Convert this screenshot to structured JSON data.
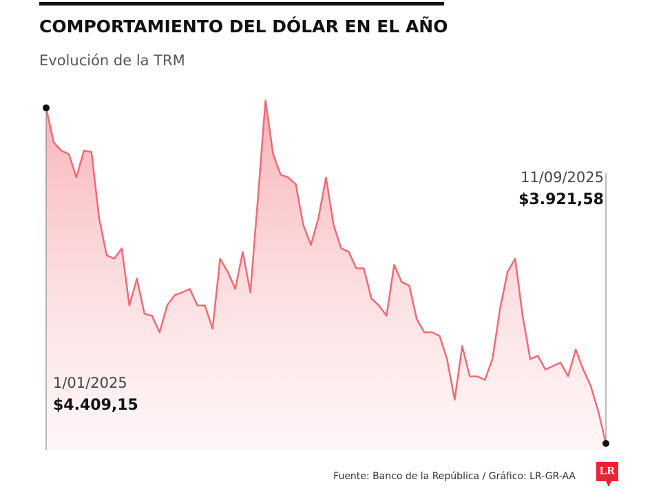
{
  "chart_data": {
    "type": "area",
    "title": "COMPORTAMIENTO DEL DÓLAR EN EL AÑO",
    "subtitle": "Evolución de la TRM",
    "source": "Fuente: Banco de la República / Gráfico: LR-GR-AA",
    "logo": "LR",
    "color": "#f06a74",
    "categories": [
      "1/01/2025",
      null,
      null,
      null,
      null,
      null,
      null,
      null,
      null,
      null,
      null,
      null,
      null,
      null,
      null,
      null,
      null,
      null,
      null,
      null,
      null,
      null,
      null,
      null,
      null,
      null,
      null,
      null,
      null,
      null,
      null,
      null,
      null,
      null,
      null,
      null,
      null,
      null,
      null,
      null,
      null,
      null,
      null,
      null,
      null,
      null,
      null,
      null,
      null,
      null,
      null,
      null,
      null,
      null,
      null,
      null,
      null,
      null,
      null,
      null,
      null,
      null,
      null,
      null,
      null,
      null,
      null,
      null,
      null,
      null,
      null,
      null,
      null,
      null,
      "11/09/2025"
    ],
    "values": [
      4409.15,
      4359,
      4347,
      4342,
      4308,
      4347,
      4345,
      4249,
      4195,
      4190,
      4205,
      4122,
      4161,
      4110,
      4107,
      4083,
      4122,
      4137,
      4141,
      4146,
      4122,
      4122,
      4088,
      4190,
      4171,
      4146,
      4200,
      4141,
      4278,
      4420,
      4342,
      4312,
      4308,
      4298,
      4239,
      4210,
      4249,
      4308,
      4239,
      4205,
      4200,
      4176,
      4176,
      4132,
      4122,
      4107,
      4181,
      4156,
      4151,
      4102,
      4083,
      4083,
      4078,
      4044,
      3985,
      4063,
      4019,
      4019,
      4014,
      4044,
      4117,
      4171,
      4190,
      4107,
      4044,
      4049,
      4029,
      4034,
      4039,
      4019,
      4058,
      4029,
      4005,
      3968,
      3921.58
    ],
    "value_labels": [
      "$4.409,15",
      null,
      null,
      null,
      null,
      null,
      null,
      null,
      null,
      null,
      null,
      null,
      null,
      null,
      null,
      null,
      null,
      null,
      null,
      null,
      null,
      null,
      null,
      null,
      null,
      null,
      null,
      null,
      null,
      null,
      null,
      null,
      null,
      null,
      null,
      null,
      null,
      null,
      null,
      null,
      null,
      null,
      null,
      null,
      null,
      null,
      null,
      null,
      null,
      null,
      null,
      null,
      null,
      null,
      null,
      null,
      null,
      null,
      null,
      null,
      null,
      null,
      null,
      null,
      null,
      null,
      null,
      null,
      null,
      null,
      null,
      null,
      null,
      null,
      "$3.921,58"
    ]
  }
}
